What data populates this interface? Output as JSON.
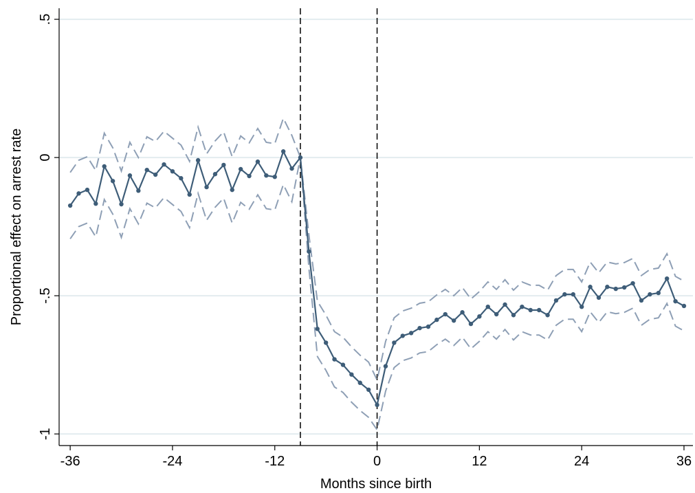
{
  "chart_data": {
    "type": "line",
    "xlabel": "Months since birth",
    "ylabel": "Proportional effect on arrest rate",
    "x": [
      -36,
      -35,
      -34,
      -33,
      -32,
      -31,
      -30,
      -29,
      -28,
      -27,
      -26,
      -25,
      -24,
      -23,
      -22,
      -21,
      -20,
      -19,
      -18,
      -17,
      -16,
      -15,
      -14,
      -13,
      -12,
      -11,
      -10,
      -9,
      -8,
      -7,
      -6,
      -5,
      -4,
      -3,
      -2,
      -1,
      0,
      1,
      2,
      3,
      4,
      5,
      6,
      7,
      8,
      9,
      10,
      11,
      12,
      13,
      14,
      15,
      16,
      17,
      18,
      19,
      20,
      21,
      22,
      23,
      24,
      25,
      26,
      27,
      28,
      29,
      30,
      31,
      32,
      33,
      34,
      35,
      36
    ],
    "series": [
      {
        "color": "#8e9fb5",
        "dashed": true,
        "markers": false,
        "values": [
          -0.054,
          -0.01,
          0.003,
          -0.047,
          0.088,
          0.035,
          -0.049,
          0.055,
          0.0,
          0.075,
          0.058,
          0.095,
          0.07,
          0.045,
          -0.014,
          0.11,
          0.013,
          0.06,
          0.093,
          0.003,
          0.078,
          0.053,
          0.105,
          0.055,
          0.05,
          0.142,
          0.08,
          0,
          -0.28,
          -0.52,
          -0.57,
          -0.63,
          -0.65,
          -0.685,
          -0.715,
          -0.74,
          -0.805,
          -0.665,
          -0.58,
          -0.555,
          -0.545,
          -0.527,
          -0.522,
          -0.497,
          -0.477,
          -0.5,
          -0.47,
          -0.512,
          -0.485,
          -0.45,
          -0.477,
          -0.442,
          -0.48,
          -0.45,
          -0.462,
          -0.462,
          -0.48,
          -0.427,
          -0.405,
          -0.405,
          -0.45,
          -0.378,
          -0.417,
          -0.378,
          -0.385,
          -0.38,
          -0.365,
          -0.427,
          -0.405,
          -0.4,
          -0.348,
          -0.43,
          -0.447
        ]
      },
      {
        "color": "#8e9fb5",
        "dashed": true,
        "markers": false,
        "values": [
          -0.294,
          -0.25,
          -0.237,
          -0.287,
          -0.152,
          -0.205,
          -0.289,
          -0.185,
          -0.24,
          -0.165,
          -0.182,
          -0.145,
          -0.17,
          -0.195,
          -0.254,
          -0.13,
          -0.227,
          -0.18,
          -0.147,
          -0.237,
          -0.162,
          -0.187,
          -0.135,
          -0.185,
          -0.19,
          -0.098,
          -0.16,
          0,
          -0.4,
          -0.72,
          -0.77,
          -0.83,
          -0.85,
          -0.885,
          -0.915,
          -0.94,
          -0.985,
          -0.845,
          -0.76,
          -0.735,
          -0.725,
          -0.707,
          -0.702,
          -0.677,
          -0.657,
          -0.68,
          -0.65,
          -0.692,
          -0.665,
          -0.63,
          -0.657,
          -0.622,
          -0.66,
          -0.63,
          -0.642,
          -0.642,
          -0.66,
          -0.607,
          -0.585,
          -0.585,
          -0.63,
          -0.558,
          -0.597,
          -0.558,
          -0.565,
          -0.56,
          -0.545,
          -0.607,
          -0.585,
          -0.58,
          -0.528,
          -0.61,
          -0.627
        ]
      },
      {
        "color": "#3e5d78",
        "dashed": false,
        "markers": true,
        "values": [
          -0.174,
          -0.13,
          -0.117,
          -0.167,
          -0.032,
          -0.085,
          -0.169,
          -0.065,
          -0.12,
          -0.045,
          -0.062,
          -0.025,
          -0.05,
          -0.075,
          -0.134,
          -0.01,
          -0.107,
          -0.06,
          -0.027,
          -0.117,
          -0.042,
          -0.067,
          -0.015,
          -0.065,
          -0.07,
          0.022,
          -0.04,
          0,
          -0.34,
          -0.62,
          -0.67,
          -0.73,
          -0.75,
          -0.785,
          -0.815,
          -0.84,
          -0.895,
          -0.755,
          -0.67,
          -0.645,
          -0.635,
          -0.617,
          -0.612,
          -0.587,
          -0.567,
          -0.59,
          -0.56,
          -0.602,
          -0.575,
          -0.54,
          -0.567,
          -0.532,
          -0.57,
          -0.54,
          -0.552,
          -0.552,
          -0.57,
          -0.517,
          -0.495,
          -0.495,
          -0.54,
          -0.468,
          -0.507,
          -0.468,
          -0.475,
          -0.47,
          -0.455,
          -0.517,
          -0.495,
          -0.49,
          -0.438,
          -0.52,
          -0.537
        ]
      }
    ],
    "vlines": [
      -9,
      0
    ],
    "xlim": [
      -37.3,
      37.05
    ],
    "ylim": [
      -1.042,
      0.54
    ],
    "xticks": [
      -36,
      -24,
      -12,
      0,
      12,
      24,
      36
    ],
    "yticks": [
      {
        "value": -1,
        "label": "-1"
      },
      {
        "value": -0.5,
        "label": "-.5"
      },
      0,
      {
        "value": 0.5,
        "label": ".5"
      }
    ],
    "grid": true
  }
}
